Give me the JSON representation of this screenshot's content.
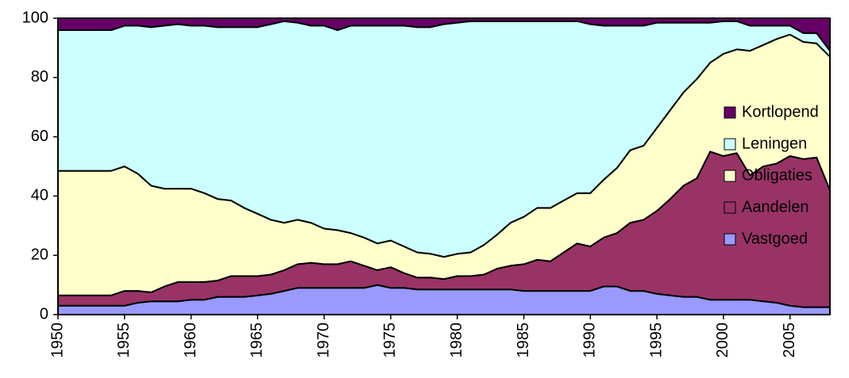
{
  "chart_data": {
    "type": "stacked_area",
    "x": [
      1950,
      1951,
      1952,
      1953,
      1954,
      1955,
      1956,
      1957,
      1958,
      1959,
      1960,
      1961,
      1962,
      1963,
      1964,
      1965,
      1966,
      1967,
      1968,
      1969,
      1970,
      1971,
      1972,
      1973,
      1974,
      1975,
      1976,
      1977,
      1978,
      1979,
      1980,
      1981,
      1982,
      1983,
      1984,
      1985,
      1986,
      1987,
      1988,
      1989,
      1990,
      1991,
      1992,
      1993,
      1994,
      1995,
      1996,
      1997,
      1998,
      1999,
      2000,
      2001,
      2002,
      2003,
      2004,
      2005,
      2006,
      2007,
      2008
    ],
    "series": [
      {
        "name": "Vastgoed",
        "color": "#9999ff",
        "values": [
          3,
          3,
          3,
          3,
          3,
          3,
          4,
          4.5,
          4.5,
          4.5,
          5,
          5,
          6,
          6,
          6,
          6.5,
          7,
          8,
          9,
          9,
          9,
          9,
          9,
          9,
          10,
          9,
          9,
          8.5,
          8.5,
          8.5,
          8.5,
          8.5,
          8.5,
          8.5,
          8.5,
          8,
          8,
          8,
          8,
          8,
          8,
          9.5,
          9.5,
          8,
          8,
          7,
          6.5,
          6,
          6,
          5,
          5,
          5,
          5,
          4.5,
          4,
          3,
          2.5,
          2.5,
          2.5
        ]
      },
      {
        "name": "Aandelen",
        "color": "#993366",
        "values": [
          3.5,
          3.5,
          3.5,
          3.5,
          3.5,
          5,
          4,
          3,
          5,
          6.5,
          6,
          6,
          5.5,
          7,
          7,
          6.5,
          6.5,
          7,
          8,
          8.5,
          8,
          8,
          9,
          7.5,
          5,
          7,
          5,
          4,
          4,
          3.5,
          4.5,
          4.5,
          5,
          7,
          8,
          9,
          10.5,
          10,
          13,
          16,
          15,
          16.5,
          18,
          23,
          24,
          28,
          32.5,
          37.5,
          40,
          50,
          48.5,
          49.5,
          42,
          45.5,
          47,
          50.5,
          50,
          50.5,
          39.5
        ]
      },
      {
        "name": "Obligaties",
        "color": "#ffffcc",
        "values": [
          42,
          42,
          42,
          42,
          42,
          42,
          39.5,
          36,
          33,
          31.5,
          31.5,
          30,
          27.5,
          25.5,
          23,
          21,
          18.5,
          16,
          15,
          13.5,
          12,
          11.5,
          9.5,
          9.5,
          9,
          9,
          9,
          8.5,
          8,
          7.5,
          7.5,
          8,
          10,
          11.5,
          14.5,
          16,
          17.5,
          18,
          17.5,
          17,
          18,
          19.5,
          22,
          24.5,
          25,
          28,
          30,
          31.5,
          33.5,
          30,
          34.5,
          35,
          42,
          41,
          42,
          41,
          39.5,
          38.5,
          45
        ]
      },
      {
        "name": "Leningen",
        "color": "#ccffff",
        "values": [
          47.5,
          47.5,
          47.5,
          47.5,
          47.5,
          47.5,
          50,
          53.5,
          55,
          55.5,
          55,
          56.5,
          58,
          58.5,
          61,
          63,
          66,
          68,
          66.5,
          66.5,
          68.5,
          67.5,
          70,
          71.5,
          73.5,
          72.5,
          74.5,
          76,
          76.5,
          78.5,
          78,
          78,
          75.5,
          72,
          68,
          66,
          63,
          63,
          60.5,
          58,
          57,
          52,
          48,
          42,
          40.5,
          35.5,
          29.5,
          23.5,
          19,
          13.5,
          11,
          9.5,
          8.5,
          6.5,
          4.5,
          3,
          3,
          3.5,
          2
        ]
      },
      {
        "name": "Kortlopend",
        "color": "#660066",
        "values": [
          4,
          4,
          4,
          4,
          4,
          2.5,
          2.5,
          3,
          2.5,
          2,
          2.5,
          2.5,
          3,
          3,
          3,
          3,
          2,
          1,
          1.5,
          2.5,
          2.5,
          4,
          2.5,
          2.5,
          2.5,
          2.5,
          2.5,
          3,
          3,
          2,
          1.5,
          1,
          1,
          1,
          1,
          1,
          1,
          1,
          1,
          1,
          2,
          2.5,
          2.5,
          2.5,
          2.5,
          1.5,
          1.5,
          1.5,
          1.5,
          1.5,
          1,
          1,
          2.5,
          2.5,
          2.5,
          2.5,
          5,
          5,
          11
        ]
      }
    ],
    "xlim": [
      1950,
      2008
    ],
    "xticks": [
      1950,
      1955,
      1960,
      1965,
      1970,
      1975,
      1980,
      1985,
      1990,
      1995,
      2000,
      2005
    ],
    "ylim": [
      0,
      100
    ],
    "yticks": [
      0,
      20,
      40,
      60,
      80,
      100
    ],
    "grid": false,
    "legend": "right"
  }
}
